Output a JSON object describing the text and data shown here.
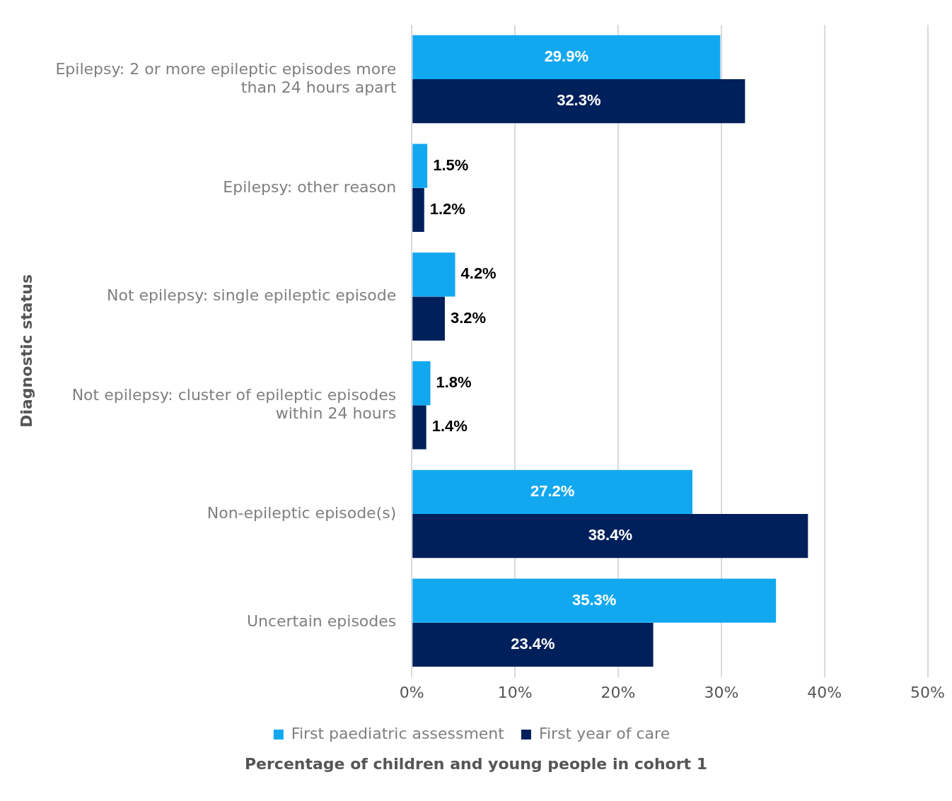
{
  "chart_data": {
    "type": "bar",
    "orientation": "horizontal",
    "xlabel": "Percentage of children and young people in cohort 1",
    "ylabel": "Diagnostic status",
    "categories": [
      "Epilepsy: 2 or more epileptic episodes more than 24 hours apart",
      "Epilepsy: other reason",
      "Not epilepsy: single epileptic episode",
      "Not epilepsy: cluster of epileptic episodes within 24 hours",
      "Non-epileptic episode(s)",
      "Uncertain episodes"
    ],
    "series": [
      {
        "name": "First paediatric assessment",
        "color": "#12a8f0",
        "values": [
          29.9,
          1.5,
          4.2,
          1.8,
          27.2,
          35.3
        ],
        "value_labels": [
          "29.9%",
          "1.5%",
          "4.2%",
          "1.8%",
          "27.2%",
          "35.3%"
        ]
      },
      {
        "name": "First year of care",
        "color": "#00205b",
        "values": [
          32.3,
          1.2,
          3.2,
          1.4,
          38.4,
          23.4
        ],
        "value_labels": [
          "32.3%",
          "1.2%",
          "3.2%",
          "1.4%",
          "38.4%",
          "23.4%"
        ]
      }
    ],
    "xlim": [
      0,
      50
    ],
    "xticks": [
      {
        "value": 0,
        "label": "0%"
      },
      {
        "value": 10,
        "label": "10%"
      },
      {
        "value": 20,
        "label": "20%"
      },
      {
        "value": 30,
        "label": "30%"
      },
      {
        "value": 40,
        "label": "40%"
      },
      {
        "value": 50,
        "label": "50%"
      }
    ],
    "grid": "x",
    "legend": "bottom"
  }
}
